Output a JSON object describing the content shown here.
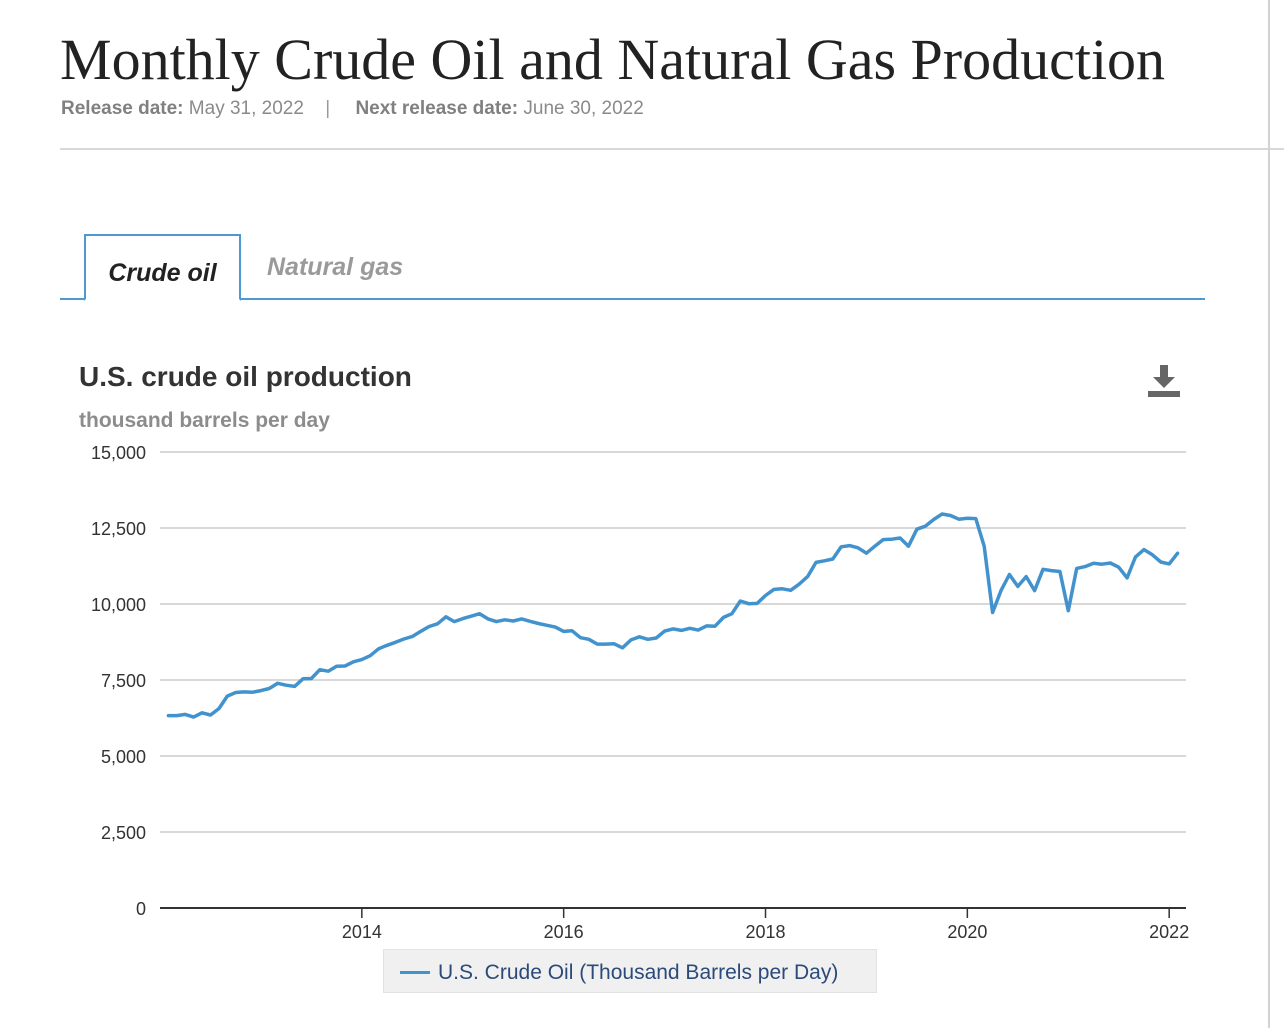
{
  "header": {
    "title": "Monthly Crude Oil and Natural Gas Production",
    "release_label": "Release date:",
    "release_value": "May 31, 2022",
    "separator": "|",
    "next_release_label": "Next release date:",
    "next_release_value": "June 30, 2022"
  },
  "tabs": [
    {
      "label": "Crude oil",
      "active": true
    },
    {
      "label": "Natural gas",
      "active": false
    }
  ],
  "chart_header": {
    "title": "U.S. crude oil production",
    "subtitle": "thousand barrels per day",
    "download_icon": "download-icon"
  },
  "colors": {
    "series": "#4293cd",
    "tab_accent": "#4d9ad2",
    "grid": "#cccccc"
  },
  "chart_data": {
    "type": "line",
    "title": "U.S. crude oil production",
    "ylabel": "thousand barrels per day",
    "xlabel": "",
    "ylim": [
      0,
      15000
    ],
    "yticks": [
      0,
      2500,
      5000,
      7500,
      10000,
      12500,
      15000
    ],
    "ytick_labels": [
      "0",
      "2,500",
      "5,000",
      "7,500",
      "10,000",
      "12,500",
      "15,000"
    ],
    "xlim": [
      "2012-01",
      "2022-03"
    ],
    "xticks": [
      "2014-01",
      "2016-01",
      "2018-01",
      "2020-01",
      "2022-01"
    ],
    "xtick_labels": [
      "2014",
      "2016",
      "2018",
      "2020",
      "2022"
    ],
    "grid": true,
    "legend_position": "bottom-center",
    "series": [
      {
        "name": "U.S. Crude Oil (Thousand Barrels per Day)",
        "points": [
          [
            "2012-02",
            6330
          ],
          [
            "2012-03",
            6330
          ],
          [
            "2012-04",
            6370
          ],
          [
            "2012-05",
            6280
          ],
          [
            "2012-06",
            6420
          ],
          [
            "2012-07",
            6350
          ],
          [
            "2012-08",
            6560
          ],
          [
            "2012-09",
            6970
          ],
          [
            "2012-10",
            7090
          ],
          [
            "2012-11",
            7110
          ],
          [
            "2012-12",
            7100
          ],
          [
            "2013-01",
            7150
          ],
          [
            "2013-02",
            7220
          ],
          [
            "2013-03",
            7390
          ],
          [
            "2013-04",
            7330
          ],
          [
            "2013-05",
            7290
          ],
          [
            "2013-06",
            7540
          ],
          [
            "2013-07",
            7550
          ],
          [
            "2013-08",
            7840
          ],
          [
            "2013-09",
            7790
          ],
          [
            "2013-10",
            7950
          ],
          [
            "2013-11",
            7960
          ],
          [
            "2013-12",
            8100
          ],
          [
            "2014-01",
            8170
          ],
          [
            "2014-02",
            8300
          ],
          [
            "2014-03",
            8530
          ],
          [
            "2014-04",
            8640
          ],
          [
            "2014-05",
            8740
          ],
          [
            "2014-06",
            8850
          ],
          [
            "2014-07",
            8930
          ],
          [
            "2014-08",
            9100
          ],
          [
            "2014-09",
            9260
          ],
          [
            "2014-10",
            9350
          ],
          [
            "2014-11",
            9580
          ],
          [
            "2014-12",
            9420
          ],
          [
            "2015-01",
            9520
          ],
          [
            "2015-02",
            9600
          ],
          [
            "2015-03",
            9680
          ],
          [
            "2015-04",
            9510
          ],
          [
            "2015-05",
            9420
          ],
          [
            "2015-06",
            9480
          ],
          [
            "2015-07",
            9440
          ],
          [
            "2015-08",
            9510
          ],
          [
            "2015-09",
            9430
          ],
          [
            "2015-10",
            9360
          ],
          [
            "2015-11",
            9300
          ],
          [
            "2015-12",
            9240
          ],
          [
            "2016-01",
            9100
          ],
          [
            "2016-02",
            9120
          ],
          [
            "2016-03",
            8890
          ],
          [
            "2016-04",
            8840
          ],
          [
            "2016-05",
            8680
          ],
          [
            "2016-06",
            8680
          ],
          [
            "2016-07",
            8690
          ],
          [
            "2016-08",
            8560
          ],
          [
            "2016-09",
            8820
          ],
          [
            "2016-10",
            8920
          ],
          [
            "2016-11",
            8840
          ],
          [
            "2016-12",
            8880
          ],
          [
            "2017-01",
            9110
          ],
          [
            "2017-02",
            9180
          ],
          [
            "2017-03",
            9130
          ],
          [
            "2017-04",
            9200
          ],
          [
            "2017-05",
            9140
          ],
          [
            "2017-06",
            9280
          ],
          [
            "2017-07",
            9270
          ],
          [
            "2017-08",
            9560
          ],
          [
            "2017-09",
            9680
          ],
          [
            "2017-10",
            10100
          ],
          [
            "2017-11",
            10010
          ],
          [
            "2017-12",
            10020
          ],
          [
            "2018-01",
            10280
          ],
          [
            "2018-02",
            10480
          ],
          [
            "2018-03",
            10500
          ],
          [
            "2018-04",
            10450
          ],
          [
            "2018-05",
            10650
          ],
          [
            "2018-06",
            10900
          ],
          [
            "2018-07",
            11370
          ],
          [
            "2018-08",
            11420
          ],
          [
            "2018-09",
            11480
          ],
          [
            "2018-10",
            11880
          ],
          [
            "2018-11",
            11920
          ],
          [
            "2018-12",
            11850
          ],
          [
            "2019-01",
            11670
          ],
          [
            "2019-02",
            11900
          ],
          [
            "2019-03",
            12120
          ],
          [
            "2019-04",
            12130
          ],
          [
            "2019-05",
            12170
          ],
          [
            "2019-06",
            11900
          ],
          [
            "2019-07",
            12460
          ],
          [
            "2019-08",
            12560
          ],
          [
            "2019-09",
            12780
          ],
          [
            "2019-10",
            12960
          ],
          [
            "2019-11",
            12910
          ],
          [
            "2019-12",
            12790
          ],
          [
            "2020-01",
            12820
          ],
          [
            "2020-02",
            12810
          ],
          [
            "2020-03",
            11900
          ],
          [
            "2020-04",
            9720
          ],
          [
            "2020-05",
            10440
          ],
          [
            "2020-06",
            10970
          ],
          [
            "2020-07",
            10580
          ],
          [
            "2020-08",
            10900
          ],
          [
            "2020-09",
            10440
          ],
          [
            "2020-10",
            11140
          ],
          [
            "2020-11",
            11100
          ],
          [
            "2020-12",
            11070
          ],
          [
            "2021-01",
            9780
          ],
          [
            "2021-02",
            11170
          ],
          [
            "2021-03",
            11230
          ],
          [
            "2021-04",
            11340
          ],
          [
            "2021-05",
            11310
          ],
          [
            "2021-06",
            11350
          ],
          [
            "2021-07",
            11210
          ],
          [
            "2021-08",
            10860
          ],
          [
            "2021-09",
            11550
          ],
          [
            "2021-10",
            11790
          ],
          [
            "2021-11",
            11620
          ],
          [
            "2021-12",
            11380
          ],
          [
            "2022-01",
            11320
          ],
          [
            "2022-02",
            11670
          ]
        ]
      }
    ]
  }
}
